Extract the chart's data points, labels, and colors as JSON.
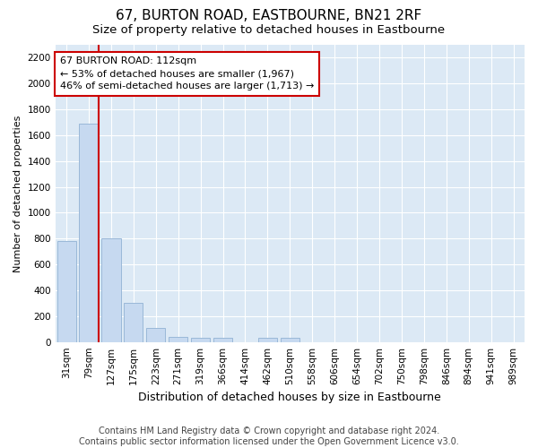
{
  "title": "67, BURTON ROAD, EASTBOURNE, BN21 2RF",
  "subtitle": "Size of property relative to detached houses in Eastbourne",
  "xlabel": "Distribution of detached houses by size in Eastbourne",
  "ylabel": "Number of detached properties",
  "categories": [
    "31sqm",
    "79sqm",
    "127sqm",
    "175sqm",
    "223sqm",
    "271sqm",
    "319sqm",
    "366sqm",
    "414sqm",
    "462sqm",
    "510sqm",
    "558sqm",
    "606sqm",
    "654sqm",
    "702sqm",
    "750sqm",
    "798sqm",
    "846sqm",
    "894sqm",
    "941sqm",
    "989sqm"
  ],
  "values": [
    780,
    1690,
    800,
    300,
    110,
    40,
    35,
    35,
    0,
    35,
    30,
    0,
    0,
    0,
    0,
    0,
    0,
    0,
    0,
    0,
    0
  ],
  "bar_color": "#c6d9f0",
  "bar_edge_color": "#9ab8d8",
  "vline_x_index": 1,
  "vline_color": "#cc0000",
  "annotation_text": "67 BURTON ROAD: 112sqm\n← 53% of detached houses are smaller (1,967)\n46% of semi-detached houses are larger (1,713) →",
  "annotation_box_edgecolor": "#cc0000",
  "annotation_box_facecolor": "#ffffff",
  "ylim": [
    0,
    2300
  ],
  "yticks": [
    0,
    200,
    400,
    600,
    800,
    1000,
    1200,
    1400,
    1600,
    1800,
    2000,
    2200
  ],
  "figure_background_color": "#ffffff",
  "plot_background_color": "#dce9f5",
  "footer": "Contains HM Land Registry data © Crown copyright and database right 2024.\nContains public sector information licensed under the Open Government Licence v3.0.",
  "title_fontsize": 11,
  "subtitle_fontsize": 9.5,
  "xlabel_fontsize": 9,
  "ylabel_fontsize": 8,
  "tick_fontsize": 7.5,
  "footer_fontsize": 7
}
